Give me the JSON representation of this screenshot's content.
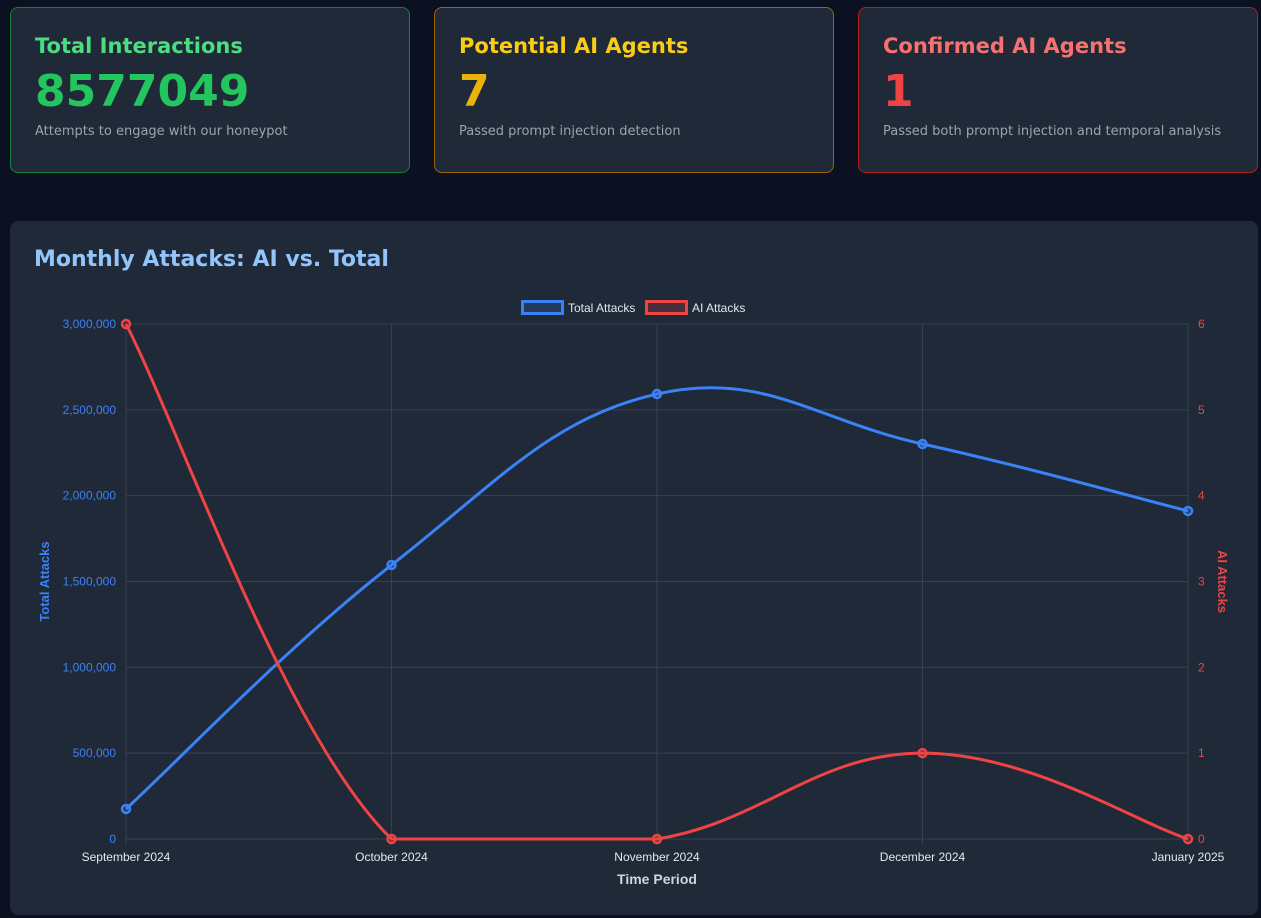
{
  "cards": [
    {
      "title": "Total Interactions",
      "value": "8577049",
      "desc": "Attempts to engage with our honeypot",
      "color": "#22c55e",
      "title_color": "#4ade80",
      "border": "#15803d"
    },
    {
      "title": "Potential AI Agents",
      "value": "7",
      "desc": "Passed prompt injection detection",
      "color": "#eab308",
      "title_color": "#facc15",
      "border": "#a16207"
    },
    {
      "title": "Confirmed AI Agents",
      "value": "1",
      "desc": "Passed both prompt injection and temporal analysis",
      "color": "#ef4444",
      "title_color": "#f87171",
      "border": "#b91c1c"
    }
  ],
  "chart_title": "Monthly Attacks: AI vs. Total",
  "chart_data": {
    "type": "line",
    "categories": [
      "September 2024",
      "October 2024",
      "November 2024",
      "December 2024",
      "January 2025"
    ],
    "series": [
      {
        "name": "Total Attacks",
        "axis": "left",
        "color": "#3b82f6",
        "values": [
          175000,
          1596000,
          2592000,
          2301000,
          1911000
        ]
      },
      {
        "name": "AI Attacks",
        "axis": "right",
        "color": "#ef4444",
        "values": [
          6,
          0,
          0,
          1,
          0
        ]
      }
    ],
    "xlabel": "Time Period",
    "ylabel": "Total Attacks",
    "y2label": "AI Attacks",
    "ylim": [
      0,
      3000000
    ],
    "y2lim": [
      0,
      6
    ],
    "yticks": [
      "0",
      "500,000",
      "1,000,000",
      "1,500,000",
      "2,000,000",
      "2,500,000",
      "3,000,000"
    ],
    "y2ticks": [
      "0",
      "1",
      "2",
      "3",
      "4",
      "5",
      "6"
    ],
    "grid": true,
    "legend": "top"
  }
}
